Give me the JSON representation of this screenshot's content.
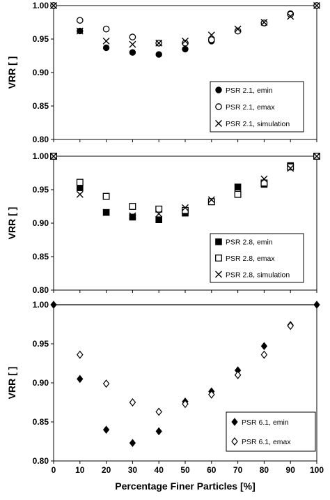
{
  "chart_data": [
    {
      "type": "scatter",
      "ylabel": "VRR [ ]",
      "xlim": [
        0,
        100
      ],
      "ylim": [
        0.8,
        1.0
      ],
      "yticks": [
        "0.80",
        "0.85",
        "0.90",
        "0.95",
        "1.00"
      ],
      "grid": false,
      "legend": "lower-right",
      "series": [
        {
          "name": "PSR 2.1, emin",
          "marker": "filled-circle",
          "x": [
            0,
            10,
            20,
            30,
            40,
            50,
            60,
            70,
            80,
            90,
            100
          ],
          "y": [
            1.0,
            0.962,
            0.937,
            0.93,
            0.927,
            0.935,
            0.947,
            0.962,
            0.974,
            0.988,
            1.0
          ]
        },
        {
          "name": "PSR 2.1, emax",
          "marker": "open-circle",
          "x": [
            0,
            10,
            20,
            30,
            40,
            50,
            60,
            70,
            80,
            90,
            100
          ],
          "y": [
            1.0,
            0.978,
            0.965,
            0.953,
            0.944,
            0.944,
            0.949,
            0.962,
            0.974,
            0.987,
            1.0
          ]
        },
        {
          "name": "PSR 2.1, simulation",
          "marker": "cross",
          "x": [
            0,
            10,
            20,
            30,
            40,
            50,
            60,
            70,
            80,
            90,
            100
          ],
          "y": [
            1.0,
            0.962,
            0.947,
            0.942,
            0.944,
            0.947,
            0.956,
            0.965,
            0.975,
            0.984,
            1.0
          ]
        }
      ]
    },
    {
      "type": "scatter",
      "ylabel": "VRR [ ]",
      "xlim": [
        0,
        100
      ],
      "ylim": [
        0.8,
        1.0
      ],
      "yticks": [
        "0.80",
        "0.85",
        "0.90",
        "0.95",
        "1.00"
      ],
      "grid": false,
      "legend": "lower-right",
      "series": [
        {
          "name": "PSR 2.8, emin",
          "marker": "filled-square",
          "x": [
            0,
            10,
            20,
            30,
            40,
            50,
            60,
            70,
            80,
            90,
            100
          ],
          "y": [
            1.0,
            0.953,
            0.916,
            0.909,
            0.905,
            0.915,
            0.932,
            0.954,
            0.958,
            0.986,
            1.0
          ]
        },
        {
          "name": "PSR 2.8, emax",
          "marker": "open-square",
          "x": [
            0,
            10,
            20,
            30,
            40,
            50,
            60,
            70,
            80,
            90,
            100
          ],
          "y": [
            1.0,
            0.961,
            0.94,
            0.925,
            0.921,
            0.919,
            0.932,
            0.943,
            0.96,
            0.984,
            1.0
          ]
        },
        {
          "name": "PSR 2.8, simulation",
          "marker": "cross",
          "x": [
            0,
            10,
            20,
            30,
            40,
            50,
            60,
            70,
            80,
            90,
            100
          ],
          "y": [
            1.0,
            0.943,
            0.916,
            0.911,
            0.914,
            0.923,
            0.935,
            0.953,
            0.966,
            0.982,
            1.0
          ]
        }
      ]
    },
    {
      "type": "scatter",
      "ylabel": "VRR [ ]",
      "xlabel": "Percentage Finer Particles [%]",
      "xlim": [
        0,
        100
      ],
      "xticks": [
        "0",
        "10",
        "20",
        "30",
        "40",
        "50",
        "60",
        "70",
        "80",
        "90",
        "100"
      ],
      "ylim": [
        0.8,
        1.0
      ],
      "yticks": [
        "0.80",
        "0.85",
        "0.90",
        "0.95",
        "1.00"
      ],
      "grid": false,
      "legend": "lower-right",
      "series": [
        {
          "name": "PSR 6.1, emin",
          "marker": "filled-diamond",
          "x": [
            10,
            20,
            30,
            40,
            50,
            60,
            70,
            80,
            90
          ],
          "y": [
            0.905,
            0.84,
            0.823,
            0.838,
            0.876,
            0.889,
            0.916,
            0.947,
            0.974
          ]
        },
        {
          "name": "PSR 6.1, emax",
          "marker": "open-diamond",
          "x": [
            10,
            20,
            30,
            40,
            50,
            60,
            70,
            80,
            90
          ],
          "y": [
            0.936,
            0.899,
            0.875,
            0.863,
            0.873,
            0.885,
            0.91,
            0.936,
            0.973
          ]
        },
        {
          "name": "",
          "marker": "filled-diamond-line",
          "x": [
            0,
            100
          ],
          "y": [
            1.0,
            1.0
          ]
        }
      ]
    }
  ]
}
